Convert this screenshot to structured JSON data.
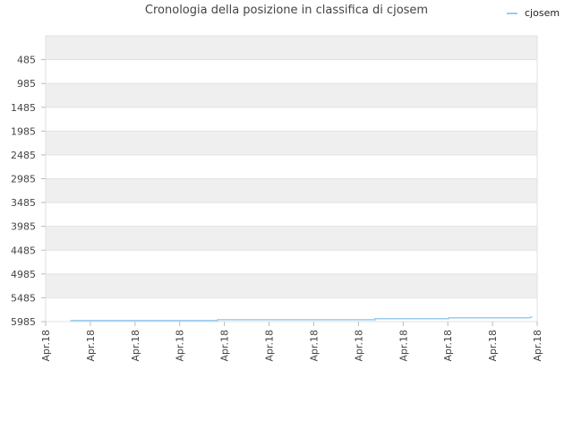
{
  "chart_data": {
    "type": "line",
    "title": "Cronologia della posizione in classifica di cjosem",
    "xlabel": "",
    "ylabel": "",
    "y_inverted": true,
    "ylim": [
      5985,
      -15
    ],
    "y_ticks": [
      485,
      985,
      1485,
      1985,
      2485,
      2985,
      3485,
      3985,
      4485,
      4985,
      5485,
      5985
    ],
    "x_tick_labels": [
      "Apr.18",
      "Apr.18",
      "Apr.18",
      "Apr.18",
      "Apr.18",
      "Apr.18",
      "Apr.18",
      "Apr.18",
      "Apr.18",
      "Apr.18",
      "Apr.18",
      "Apr.18"
    ],
    "grid": "alternating horizontal bands",
    "legend_position": "top-right",
    "series": [
      {
        "name": "cjosem",
        "color": "#99ccee",
        "x": [
          0.05,
          0.35,
          0.35,
          0.67,
          0.67,
          0.82,
          0.82,
          0.985,
          0.99
        ],
        "values": [
          5960,
          5960,
          5945,
          5945,
          5925,
          5925,
          5905,
          5905,
          5880
        ]
      }
    ]
  }
}
